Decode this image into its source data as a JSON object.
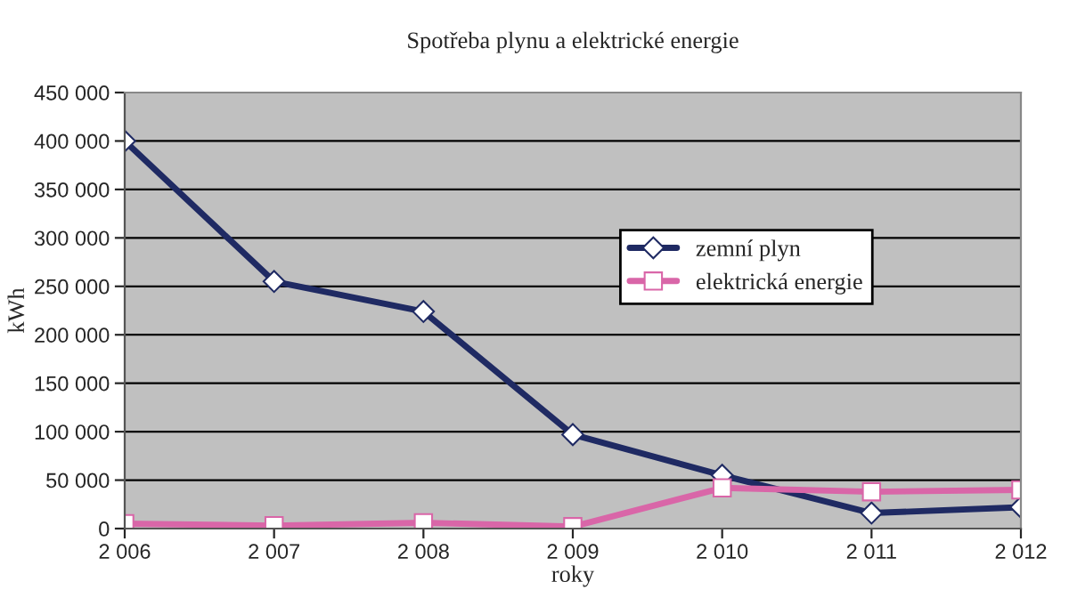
{
  "chart_data": {
    "type": "line",
    "title": "Spotřeba plynu a elektrické energie",
    "xlabel": "roky",
    "ylabel": "kWh",
    "categories": [
      "2 006",
      "2 007",
      "2 008",
      "2 009",
      "2 010",
      "2 011",
      "2 012"
    ],
    "series": [
      {
        "name": "zemní plyn",
        "color": "#1f2a63",
        "marker": "diamond",
        "values": [
          400000,
          255000,
          224000,
          97000,
          55000,
          16000,
          22000
        ]
      },
      {
        "name": "elektrická energie",
        "color": "#d966a8",
        "marker": "square",
        "values": [
          5000,
          3000,
          6000,
          2000,
          42000,
          38000,
          40000
        ]
      }
    ],
    "ylim": [
      0,
      450000
    ],
    "yticks": [
      {
        "value": 0,
        "label": "0"
      },
      {
        "value": 50000,
        "label": "50 000"
      },
      {
        "value": 100000,
        "label": "100 000"
      },
      {
        "value": 150000,
        "label": "150 000"
      },
      {
        "value": 200000,
        "label": "200 000"
      },
      {
        "value": 250000,
        "label": "250 000"
      },
      {
        "value": 300000,
        "label": "300 000"
      },
      {
        "value": 350000,
        "label": "350 000"
      },
      {
        "value": 400000,
        "label": "400 000"
      },
      {
        "value": 450000,
        "label": "450 000"
      }
    ],
    "grid": "y",
    "legend": "right",
    "line_style": "solid"
  }
}
